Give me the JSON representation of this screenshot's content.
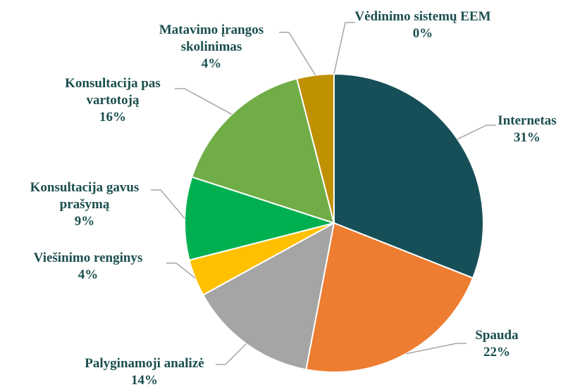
{
  "chart_data": {
    "type": "pie",
    "categories": [
      "Internetas",
      "Spauda",
      "Palyginamoji analizė",
      "Viešinimo renginys",
      "Konsultacija gavus prašymą",
      "Konsultacija pas vartotoją",
      "Matavimo įrangos skolinimas",
      "Vėdinimo sistemų EEM"
    ],
    "values": [
      31,
      22,
      14,
      4,
      9,
      16,
      4,
      0
    ],
    "value_labels": [
      "31%",
      "22%",
      "14%",
      "4%",
      "9%",
      "16%",
      "4%",
      "0%"
    ],
    "colors": [
      "#174f59",
      "#ed7d31",
      "#a5a5a5",
      "#ffc000",
      "#00b050",
      "#70ad47",
      "#bf9000",
      "#7f6000"
    ]
  }
}
